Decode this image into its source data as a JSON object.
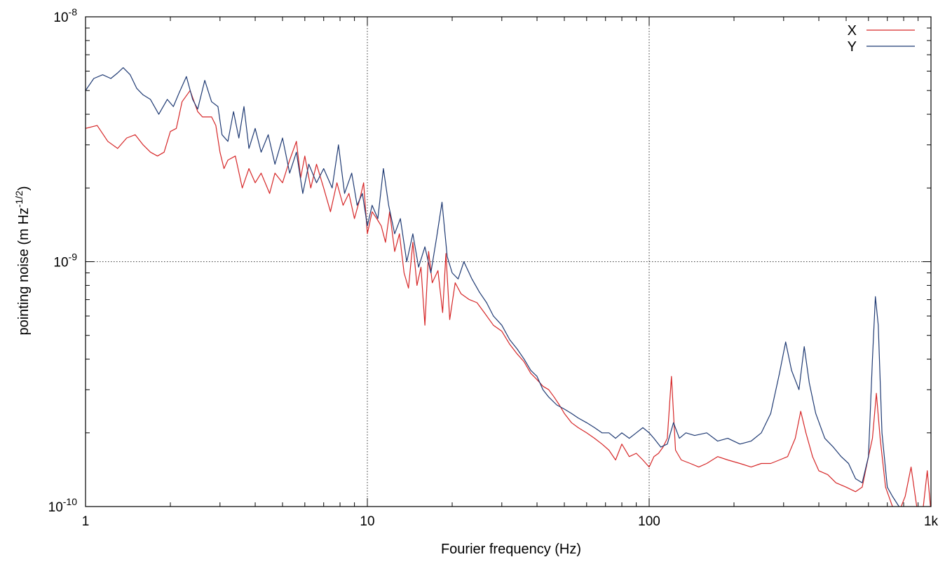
{
  "chart_data": {
    "type": "line",
    "xscale": "log",
    "yscale": "log",
    "xlabel": "Fourier frequency (Hz)",
    "ylabel_main": "pointing noise (m Hz",
    "ylabel_sup": "-1/2",
    "ylabel_end": ")",
    "xlim": [
      1,
      1000
    ],
    "ylim": [
      1e-10,
      1e-08
    ],
    "grid": true,
    "legend_position": "top-right",
    "x_ticks": [
      {
        "value": 1,
        "label": "1"
      },
      {
        "value": 10,
        "label": "10"
      },
      {
        "value": 100,
        "label": "100"
      },
      {
        "value": 1000,
        "label": "1k"
      }
    ],
    "y_ticks": [
      {
        "value": 1e-10,
        "base": "10",
        "exp": "-10"
      },
      {
        "value": 1e-09,
        "base": "10",
        "exp": "-9"
      },
      {
        "value": 1e-08,
        "base": "10",
        "exp": "-8"
      }
    ],
    "series": [
      {
        "name": "X",
        "color": "#d62728",
        "points": [
          [
            1.0,
            3.5e-09
          ],
          [
            1.1,
            3.6e-09
          ],
          [
            1.2,
            3.1e-09
          ],
          [
            1.3,
            2.9e-09
          ],
          [
            1.4,
            3.2e-09
          ],
          [
            1.5,
            3.3e-09
          ],
          [
            1.6,
            3e-09
          ],
          [
            1.7,
            2.8e-09
          ],
          [
            1.8,
            2.7e-09
          ],
          [
            1.9,
            2.8e-09
          ],
          [
            2.0,
            3.4e-09
          ],
          [
            2.1,
            3.5e-09
          ],
          [
            2.2,
            4.5e-09
          ],
          [
            2.35,
            5e-09
          ],
          [
            2.5,
            4.1e-09
          ],
          [
            2.6,
            3.9e-09
          ],
          [
            2.8,
            3.9e-09
          ],
          [
            2.9,
            3.6e-09
          ],
          [
            3.0,
            2.8e-09
          ],
          [
            3.1,
            2.4e-09
          ],
          [
            3.2,
            2.6e-09
          ],
          [
            3.4,
            2.7e-09
          ],
          [
            3.6,
            2e-09
          ],
          [
            3.8,
            2.4e-09
          ],
          [
            4.0,
            2.1e-09
          ],
          [
            4.2,
            2.3e-09
          ],
          [
            4.5,
            1.9e-09
          ],
          [
            4.7,
            2.3e-09
          ],
          [
            5.0,
            2.1e-09
          ],
          [
            5.3,
            2.6e-09
          ],
          [
            5.6,
            3.1e-09
          ],
          [
            5.8,
            2.2e-09
          ],
          [
            6.0,
            2.7e-09
          ],
          [
            6.3,
            2e-09
          ],
          [
            6.6,
            2.5e-09
          ],
          [
            7.0,
            2e-09
          ],
          [
            7.4,
            1.6e-09
          ],
          [
            7.8,
            2.1e-09
          ],
          [
            8.2,
            1.7e-09
          ],
          [
            8.6,
            1.9e-09
          ],
          [
            9.0,
            1.5e-09
          ],
          [
            9.4,
            1.8e-09
          ],
          [
            9.7,
            2.1e-09
          ],
          [
            10.0,
            1.3e-09
          ],
          [
            10.4,
            1.6e-09
          ],
          [
            10.8,
            1.5e-09
          ],
          [
            11.2,
            1.4e-09
          ],
          [
            11.6,
            1.2e-09
          ],
          [
            12.0,
            1.6e-09
          ],
          [
            12.5,
            1.1e-09
          ],
          [
            13.0,
            1.3e-09
          ],
          [
            13.5,
            9e-10
          ],
          [
            14.0,
            7.8e-10
          ],
          [
            14.5,
            1.2e-09
          ],
          [
            15.0,
            8e-10
          ],
          [
            15.5,
            9.5e-10
          ],
          [
            16.0,
            5.5e-10
          ],
          [
            16.5,
            1.1e-09
          ],
          [
            17.0,
            8.2e-10
          ],
          [
            17.8,
            9.2e-10
          ],
          [
            18.5,
            6.2e-10
          ],
          [
            19.0,
            1.08e-09
          ],
          [
            19.6,
            5.8e-10
          ],
          [
            20.5,
            8.2e-10
          ],
          [
            21.5,
            7.4e-10
          ],
          [
            23.0,
            7e-10
          ],
          [
            24.5,
            6.8e-10
          ],
          [
            26.0,
            6.2e-10
          ],
          [
            28.0,
            5.5e-10
          ],
          [
            30.0,
            5.2e-10
          ],
          [
            32.0,
            4.6e-10
          ],
          [
            34.0,
            4.2e-10
          ],
          [
            36.0,
            3.9e-10
          ],
          [
            38.0,
            3.5e-10
          ],
          [
            40.0,
            3.3e-10
          ],
          [
            42.0,
            3.1e-10
          ],
          [
            44.0,
            3e-10
          ],
          [
            46.0,
            2.8e-10
          ],
          [
            48.0,
            2.6e-10
          ],
          [
            50.0,
            2.4e-10
          ],
          [
            53.0,
            2.2e-10
          ],
          [
            56.0,
            2.1e-10
          ],
          [
            60.0,
            2e-10
          ],
          [
            64.0,
            1.9e-10
          ],
          [
            68.0,
            1.8e-10
          ],
          [
            72.0,
            1.7e-10
          ],
          [
            76.0,
            1.55e-10
          ],
          [
            80.0,
            1.8e-10
          ],
          [
            85.0,
            1.6e-10
          ],
          [
            90.0,
            1.65e-10
          ],
          [
            95.0,
            1.55e-10
          ],
          [
            100.0,
            1.45e-10
          ],
          [
            104.0,
            1.6e-10
          ],
          [
            108.0,
            1.65e-10
          ],
          [
            112.0,
            1.75e-10
          ],
          [
            116.0,
            1.9e-10
          ],
          [
            120.0,
            3.4e-10
          ],
          [
            124.0,
            1.7e-10
          ],
          [
            130.0,
            1.55e-10
          ],
          [
            140.0,
            1.5e-10
          ],
          [
            150.0,
            1.45e-10
          ],
          [
            160.0,
            1.5e-10
          ],
          [
            175.0,
            1.6e-10
          ],
          [
            190.0,
            1.55e-10
          ],
          [
            210.0,
            1.5e-10
          ],
          [
            230.0,
            1.45e-10
          ],
          [
            250.0,
            1.5e-10
          ],
          [
            270.0,
            1.5e-10
          ],
          [
            290.0,
            1.55e-10
          ],
          [
            310.0,
            1.6e-10
          ],
          [
            330.0,
            1.9e-10
          ],
          [
            345.0,
            2.45e-10
          ],
          [
            360.0,
            2e-10
          ],
          [
            380.0,
            1.6e-10
          ],
          [
            400.0,
            1.4e-10
          ],
          [
            430.0,
            1.35e-10
          ],
          [
            460.0,
            1.25e-10
          ],
          [
            500.0,
            1.2e-10
          ],
          [
            540.0,
            1.15e-10
          ],
          [
            570.0,
            1.2e-10
          ],
          [
            600.0,
            1.6e-10
          ],
          [
            620.0,
            1.9e-10
          ],
          [
            640.0,
            2.9e-10
          ],
          [
            660.0,
            1.9e-10
          ],
          [
            690.0,
            1.2e-10
          ],
          [
            730.0,
            1e-10
          ],
          [
            770.0,
            9.5e-11
          ],
          [
            810.0,
            1.1e-10
          ],
          [
            850.0,
            1.45e-10
          ],
          [
            890.0,
            1e-10
          ],
          [
            930.0,
            9e-11
          ],
          [
            970.0,
            1.4e-10
          ],
          [
            1000.0,
            9.5e-11
          ]
        ]
      },
      {
        "name": "Y",
        "color": "#1f3a73",
        "points": [
          [
            1.0,
            5e-09
          ],
          [
            1.07,
            5.6e-09
          ],
          [
            1.15,
            5.8e-09
          ],
          [
            1.23,
            5.6e-09
          ],
          [
            1.3,
            5.9e-09
          ],
          [
            1.36,
            6.2e-09
          ],
          [
            1.44,
            5.8e-09
          ],
          [
            1.52,
            5.1e-09
          ],
          [
            1.6,
            4.8e-09
          ],
          [
            1.7,
            4.6e-09
          ],
          [
            1.82,
            4e-09
          ],
          [
            1.95,
            4.6e-09
          ],
          [
            2.05,
            4.3e-09
          ],
          [
            2.15,
            4.9e-09
          ],
          [
            2.28,
            5.7e-09
          ],
          [
            2.4,
            4.6e-09
          ],
          [
            2.5,
            4.2e-09
          ],
          [
            2.65,
            5.5e-09
          ],
          [
            2.8,
            4.5e-09
          ],
          [
            2.95,
            4.3e-09
          ],
          [
            3.05,
            3.3e-09
          ],
          [
            3.2,
            3.1e-09
          ],
          [
            3.35,
            4.1e-09
          ],
          [
            3.5,
            3.2e-09
          ],
          [
            3.65,
            4.3e-09
          ],
          [
            3.8,
            2.9e-09
          ],
          [
            4.0,
            3.5e-09
          ],
          [
            4.2,
            2.8e-09
          ],
          [
            4.45,
            3.3e-09
          ],
          [
            4.7,
            2.5e-09
          ],
          [
            5.0,
            3.2e-09
          ],
          [
            5.3,
            2.3e-09
          ],
          [
            5.6,
            2.8e-09
          ],
          [
            5.9,
            1.9e-09
          ],
          [
            6.2,
            2.5e-09
          ],
          [
            6.6,
            2.1e-09
          ],
          [
            7.0,
            2.4e-09
          ],
          [
            7.5,
            2e-09
          ],
          [
            7.9,
            3e-09
          ],
          [
            8.3,
            1.9e-09
          ],
          [
            8.8,
            2.3e-09
          ],
          [
            9.2,
            1.7e-09
          ],
          [
            9.6,
            1.9e-09
          ],
          [
            10.0,
            1.4e-09
          ],
          [
            10.4,
            1.7e-09
          ],
          [
            10.9,
            1.5e-09
          ],
          [
            11.4,
            2.4e-09
          ],
          [
            11.9,
            1.7e-09
          ],
          [
            12.5,
            1.3e-09
          ],
          [
            13.1,
            1.5e-09
          ],
          [
            13.8,
            1e-09
          ],
          [
            14.5,
            1.3e-09
          ],
          [
            15.2,
            9.5e-10
          ],
          [
            16.0,
            1.15e-09
          ],
          [
            16.8,
            9e-10
          ],
          [
            17.6,
            1.25e-09
          ],
          [
            18.4,
            1.75e-09
          ],
          [
            19.2,
            1.05e-09
          ],
          [
            20.0,
            9e-10
          ],
          [
            21.0,
            8.5e-10
          ],
          [
            22.0,
            1e-09
          ],
          [
            23.5,
            8.5e-10
          ],
          [
            25.0,
            7.5e-10
          ],
          [
            26.5,
            6.8e-10
          ],
          [
            28.0,
            6e-10
          ],
          [
            30.0,
            5.5e-10
          ],
          [
            32.0,
            4.8e-10
          ],
          [
            34.0,
            4.4e-10
          ],
          [
            36.0,
            4e-10
          ],
          [
            38.0,
            3.6e-10
          ],
          [
            40.0,
            3.4e-10
          ],
          [
            42.0,
            3e-10
          ],
          [
            44.0,
            2.8e-10
          ],
          [
            47.0,
            2.6e-10
          ],
          [
            50.0,
            2.5e-10
          ],
          [
            53.0,
            2.4e-10
          ],
          [
            56.0,
            2.3e-10
          ],
          [
            60.0,
            2.2e-10
          ],
          [
            64.0,
            2.1e-10
          ],
          [
            68.0,
            2e-10
          ],
          [
            72.0,
            2e-10
          ],
          [
            76.0,
            1.9e-10
          ],
          [
            80.0,
            2e-10
          ],
          [
            85.0,
            1.9e-10
          ],
          [
            90.0,
            2e-10
          ],
          [
            95.0,
            2.1e-10
          ],
          [
            100.0,
            2e-10
          ],
          [
            104.0,
            1.9e-10
          ],
          [
            110.0,
            1.75e-10
          ],
          [
            116.0,
            1.8e-10
          ],
          [
            122.0,
            2.2e-10
          ],
          [
            128.0,
            1.9e-10
          ],
          [
            135.0,
            2e-10
          ],
          [
            145.0,
            1.95e-10
          ],
          [
            160.0,
            2e-10
          ],
          [
            175.0,
            1.85e-10
          ],
          [
            190.0,
            1.9e-10
          ],
          [
            210.0,
            1.8e-10
          ],
          [
            230.0,
            1.85e-10
          ],
          [
            250.0,
            2e-10
          ],
          [
            270.0,
            2.4e-10
          ],
          [
            290.0,
            3.5e-10
          ],
          [
            305.0,
            4.7e-10
          ],
          [
            320.0,
            3.6e-10
          ],
          [
            340.0,
            3e-10
          ],
          [
            355.0,
            4.5e-10
          ],
          [
            370.0,
            3.2e-10
          ],
          [
            390.0,
            2.4e-10
          ],
          [
            420.0,
            1.9e-10
          ],
          [
            450.0,
            1.75e-10
          ],
          [
            480.0,
            1.6e-10
          ],
          [
            510.0,
            1.5e-10
          ],
          [
            540.0,
            1.3e-10
          ],
          [
            570.0,
            1.25e-10
          ],
          [
            600.0,
            1.6e-10
          ],
          [
            620.0,
            4e-10
          ],
          [
            635.0,
            7.2e-10
          ],
          [
            650.0,
            5.5e-10
          ],
          [
            670.0,
            2e-10
          ],
          [
            700.0,
            1.2e-10
          ],
          [
            730.0,
            1.1e-10
          ],
          [
            770.0,
            1e-10
          ],
          [
            810.0,
            9.5e-11
          ]
        ]
      }
    ]
  }
}
